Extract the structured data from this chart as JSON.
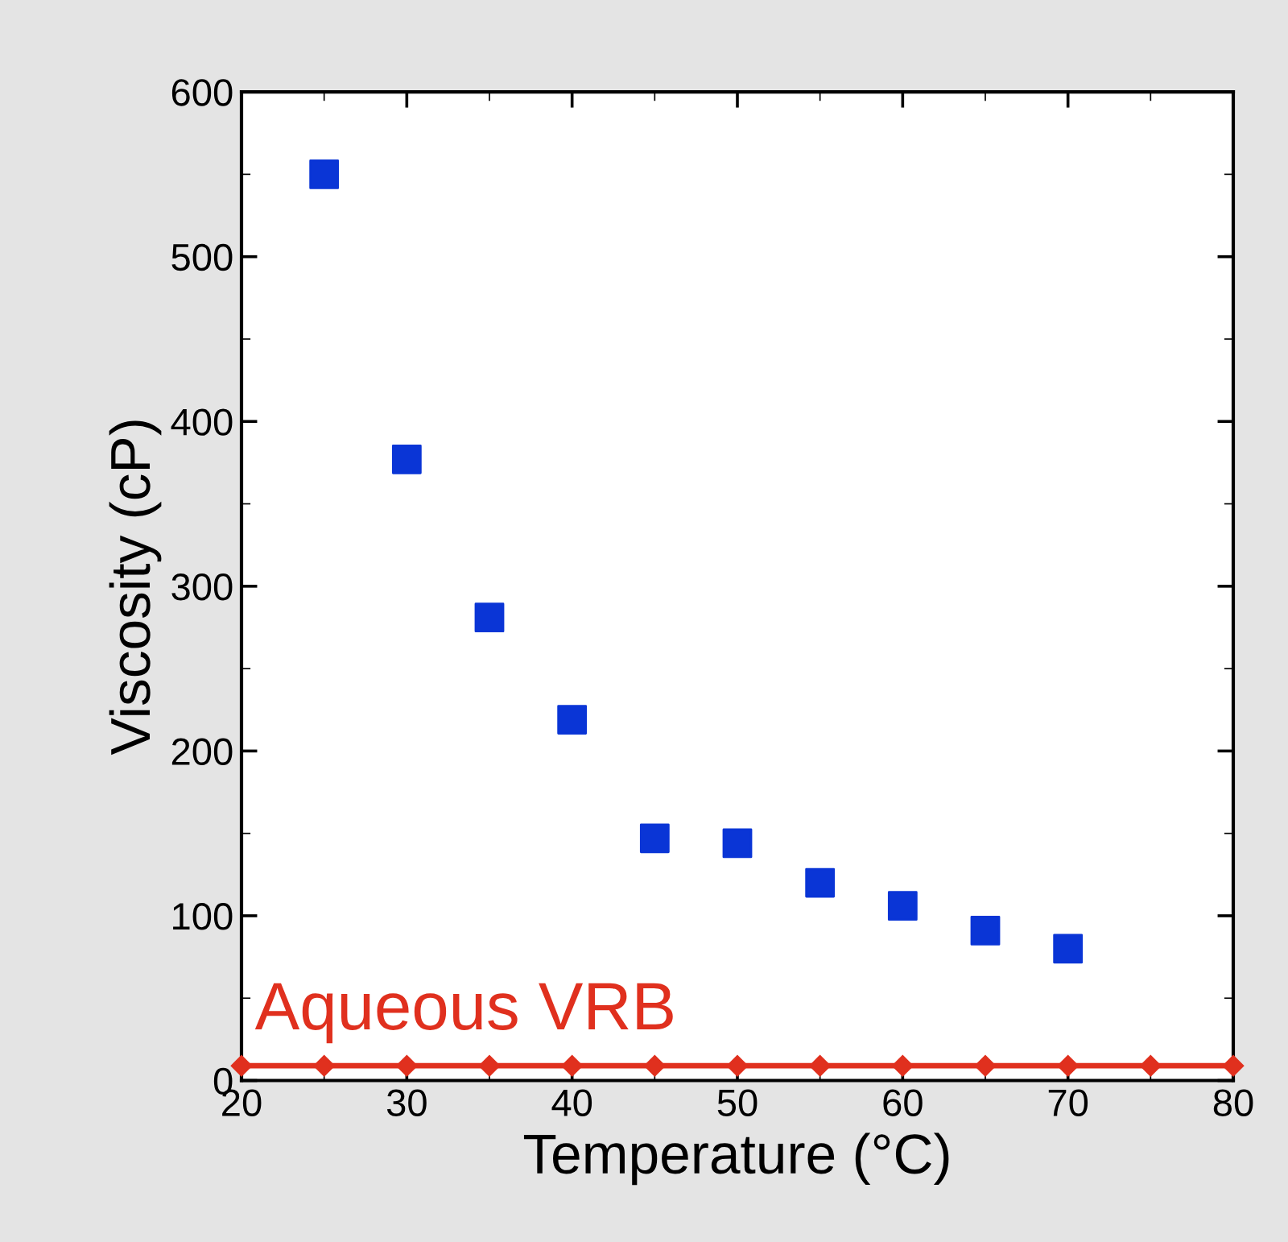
{
  "chart_data": {
    "type": "scatter",
    "xlabel": "Temperature (°C)",
    "ylabel": "Viscosity (cP)",
    "xlim": [
      20,
      80
    ],
    "xticks": [
      20,
      30,
      40,
      50,
      60,
      70,
      80
    ],
    "ylim": [
      0,
      600
    ],
    "yticks": [
      0,
      100,
      200,
      300,
      400,
      500,
      600
    ],
    "marker": "square",
    "grid": false,
    "legend": false,
    "series": [
      {
        "color": "#0a35d6",
        "x": [
          25,
          30,
          35,
          40,
          45,
          50,
          55,
          60,
          65,
          70
        ],
        "values": [
          550,
          377,
          281,
          219,
          147,
          144,
          120,
          106,
          91,
          80
        ]
      },
      {
        "name": "Aqueous VRB",
        "type": "line",
        "marker": "diamond",
        "color": "#e0301e",
        "x": [
          20,
          25,
          30,
          35,
          40,
          45,
          50,
          55,
          60,
          65,
          70,
          75,
          80
        ],
        "values": [
          9,
          9,
          9,
          9,
          9,
          9,
          9,
          9,
          9,
          9,
          9,
          9,
          9
        ]
      }
    ]
  }
}
